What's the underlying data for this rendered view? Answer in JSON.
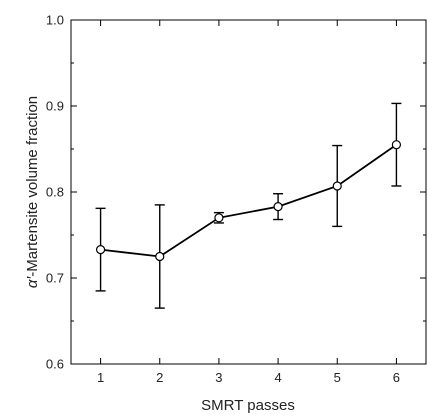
{
  "chart_data": {
    "type": "line",
    "title": "",
    "xlabel": "SMRT passes",
    "ylabel_prefix": "α′",
    "ylabel_rest": "-Martensite volume fraction",
    "xlim": [
      0.5,
      6.5
    ],
    "ylim": [
      0.6,
      1.0
    ],
    "x_ticks": [
      1,
      2,
      3,
      4,
      5,
      6
    ],
    "x_tick_labels": [
      "1",
      "2",
      "3",
      "4",
      "5",
      "6"
    ],
    "y_ticks": [
      0.6,
      0.7,
      0.8,
      0.9,
      1.0
    ],
    "y_tick_labels": [
      "0.6",
      "0.7",
      "0.8",
      "0.9",
      "1.0"
    ],
    "grid": false,
    "legend": "none",
    "series": [
      {
        "x": [
          1,
          2,
          3,
          4,
          5,
          6
        ],
        "values": [
          0.733,
          0.725,
          0.77,
          0.783,
          0.807,
          0.855
        ],
        "error": [
          0.048,
          0.06,
          0.006,
          0.015,
          0.047,
          0.048
        ]
      }
    ],
    "colors": {
      "line": "#000000",
      "marker_fill": "#ffffff"
    }
  }
}
